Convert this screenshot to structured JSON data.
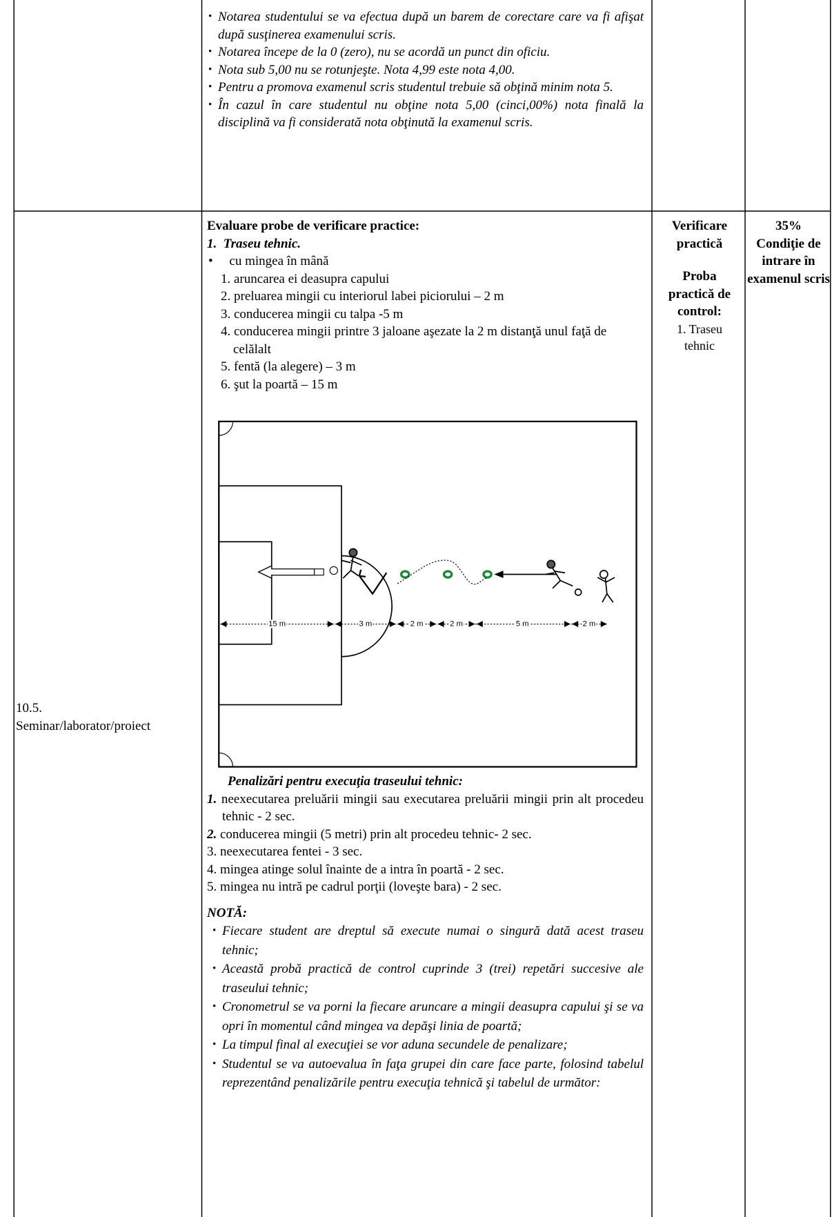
{
  "row1": {
    "bullets": [
      "Notarea studentului se va efectua după un barem de corectare care va fi afişat după susţinerea examenului  scris.",
      "Notarea începe de la 0 (zero), nu se acordă un punct din oficiu.",
      "Nota sub 5,00 nu se rotunjeşte. Nota 4,99 este nota 4,00.",
      "Pentru a promova examenul scris studentul trebuie să obţină minim nota 5.",
      "În cazul în care studentul nu obţine nota 5,00 (cinci,00%) nota finală la disciplină va fi considerată nota obţinută la examenul scris."
    ]
  },
  "row2": {
    "label": [
      "10.5.",
      "Seminar/laborator/proiect"
    ],
    "heading": "Evaluare probe de verificare practice:",
    "subheading": {
      "num": "1.",
      "text": "Traseu tehnic."
    },
    "bullet": "cu mingea în mână",
    "steps": [
      "1. aruncarea ei deasupra capului",
      "2. preluarea mingii cu interiorul labei piciorului – 2 m",
      "3. conducerea mingii cu talpa -5 m",
      "4. conducerea mingii printre 3 jaloane aşezate la 2 m distanţă unul faţă de celălalt",
      "5. fentă (la alegere) – 3 m",
      "6. şut la poartă – 15 m"
    ],
    "diagram": {
      "distances": [
        "15 m",
        "3 m",
        "2 m",
        "2 m",
        "5 m",
        "2 m"
      ]
    },
    "penalties_title": "Penalizări pentru execuţia traseului tehnic:",
    "penalties": [
      {
        "num": "1.",
        "text": "neexecutarea preluării mingii sau executarea preluării mingii prin alt procedeu tehnic  - 2 sec."
      },
      {
        "num": "2.",
        "text": "conducerea mingii (5 metri) prin alt procedeu tehnic- 2 sec."
      },
      {
        "num": "3.",
        "text": "neexecutarea fentei - 3 sec."
      },
      {
        "num": "4.",
        "text": "mingea atinge solul înainte de a intra în poartă - 2 sec."
      },
      {
        "num": "5.",
        "text": "mingea nu intră pe cadrul porţii (loveşte bara) -  2 sec."
      }
    ],
    "note_title": "NOTĂ:",
    "notes": [
      "Fiecare student are dreptul să execute numai o singură dată acest traseu tehnic;",
      "Această probă practică de control cuprinde 3 (trei) repetări succesive ale traseului tehnic;",
      "Cronometrul se va porni la fiecare aruncare a mingii deasupra capului şi se va opri în momentul când mingea va depăşi linia de poartă;",
      "La timpul final al execuţiei se vor aduna secundele de penalizare;",
      "Studentul se va autoevalua în faţa grupei din care face parte, folosind tabelul reprezentând penalizările pentru execuţia tehnică şi tabelul de următor:"
    ],
    "method": [
      "Verificare practică",
      "Proba practică de control:",
      "1. Traseu tehnic"
    ],
    "weight": [
      "35%",
      "Condiţie de intrare în examenul scris"
    ]
  }
}
